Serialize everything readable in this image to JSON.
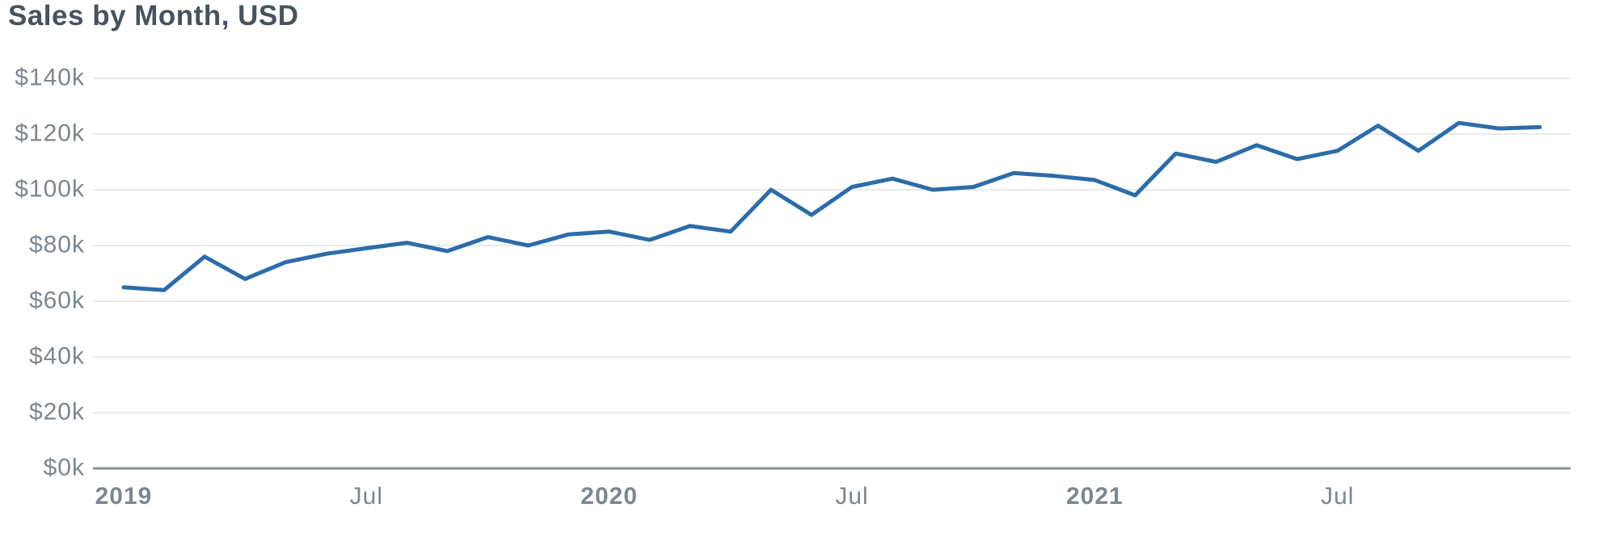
{
  "title": "Sales by Month, USD",
  "colors": {
    "line": "#2c6ca8",
    "gridline": "#e6e9ee",
    "zero_axis": "#87919b",
    "title_text": "#46535e",
    "tick_label_text": "#7b8792",
    "background": "#ffffff"
  },
  "chart_data": {
    "type": "line",
    "title": "Sales by Month, USD",
    "xlabel": "",
    "ylabel": "",
    "unit": "USD thousands",
    "ylim": [
      0,
      140
    ],
    "grid": "horizontal",
    "legend": "none",
    "x": [
      "2019-01",
      "2019-02",
      "2019-03",
      "2019-04",
      "2019-05",
      "2019-06",
      "2019-07",
      "2019-08",
      "2019-09",
      "2019-10",
      "2019-11",
      "2019-12",
      "2020-01",
      "2020-02",
      "2020-03",
      "2020-04",
      "2020-05",
      "2020-06",
      "2020-07",
      "2020-08",
      "2020-09",
      "2020-10",
      "2020-11",
      "2020-12",
      "2021-01",
      "2021-02",
      "2021-03",
      "2021-04",
      "2021-05",
      "2021-06",
      "2021-07",
      "2021-08",
      "2021-09",
      "2021-10",
      "2021-11",
      "2021-12"
    ],
    "series": [
      {
        "name": "Sales",
        "values": [
          65,
          64,
          76,
          68,
          74,
          77,
          79,
          81,
          78,
          83,
          80,
          84,
          85,
          82,
          87,
          85,
          100,
          91,
          101,
          104,
          100,
          101,
          106,
          105,
          103.5,
          98,
          113,
          110,
          116,
          111,
          114,
          123,
          114,
          124,
          122,
          122.5
        ]
      }
    ],
    "y_ticks": [
      {
        "label": "$140k",
        "value": 140
      },
      {
        "label": "$120k",
        "value": 120
      },
      {
        "label": "$100k",
        "value": 100
      },
      {
        "label": "$80k",
        "value": 80
      },
      {
        "label": "$60k",
        "value": 60
      },
      {
        "label": "$40k",
        "value": 40
      },
      {
        "label": "$20k",
        "value": 20
      },
      {
        "label": "$0k",
        "value": 0
      }
    ],
    "x_ticks": [
      {
        "label": "2019",
        "month_index": 0,
        "year": true
      },
      {
        "label": "Jul",
        "month_index": 6,
        "year": false
      },
      {
        "label": "2020",
        "month_index": 12,
        "year": true
      },
      {
        "label": "Jul",
        "month_index": 18,
        "year": false
      },
      {
        "label": "2021",
        "month_index": 24,
        "year": true
      },
      {
        "label": "Jul",
        "month_index": 30,
        "year": false
      }
    ]
  }
}
